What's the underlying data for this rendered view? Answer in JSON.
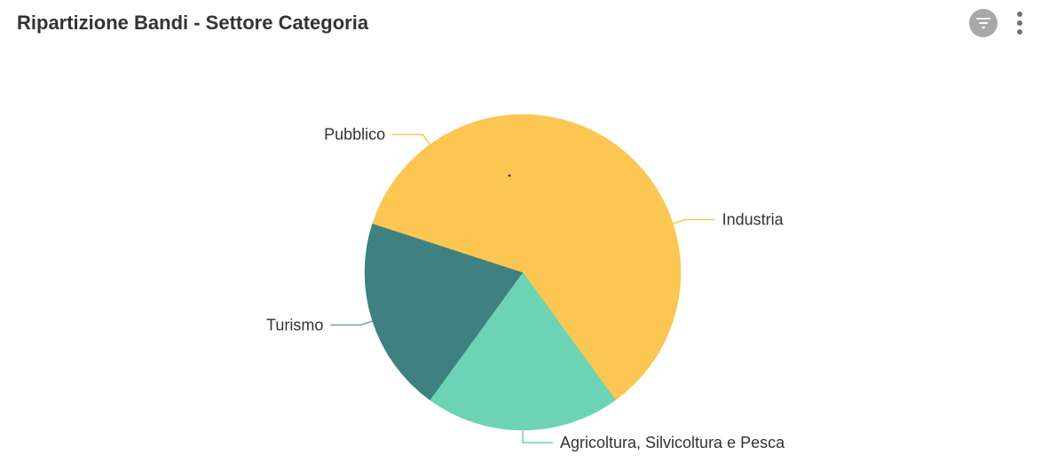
{
  "panel": {
    "title": "Ripartizione Bandi - Settore Categoria"
  },
  "toolbar": {
    "filter_icon": "filter-icon",
    "more_icon": "more-vertical-icon"
  },
  "colors": {
    "yellow": "#fcc652",
    "teal": "#6cd4b4",
    "dark_teal": "#3f8080",
    "leader_yellow": "#fcc652",
    "leader_teal": "#6cd4b4",
    "leader_dark_teal": "#7aa0a0"
  },
  "chart_data": {
    "type": "pie",
    "title": "Ripartizione Bandi - Settore Categoria",
    "legend": "none",
    "labels_shown": "outside",
    "slices": [
      {
        "label": "Industria",
        "value": 40,
        "color": "#fcc652"
      },
      {
        "label": "Agricoltura, Silvicoltura e Pesca",
        "value": 20,
        "color": "#6cd4b4"
      },
      {
        "label": "Turismo",
        "value": 20,
        "color": "#3f8080"
      },
      {
        "label": "Pubblico",
        "value": 20,
        "color": "#fcc652"
      }
    ]
  }
}
